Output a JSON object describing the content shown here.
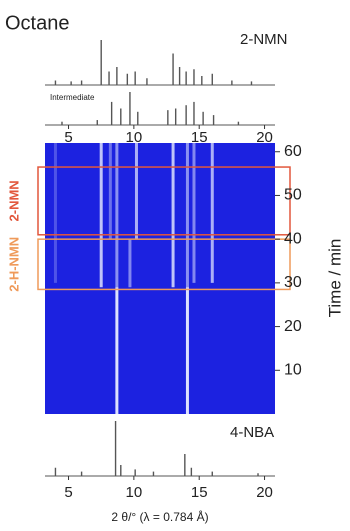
{
  "chart_data": {
    "type": "xrd-heatmap",
    "title": "Octane",
    "xlabel": "2 θ/° (λ = 0.784 Å)",
    "ylabel": "Time / min",
    "xlim": [
      3.2,
      20.8
    ],
    "xticks": [
      5,
      10,
      15,
      20
    ],
    "ylim": [
      0,
      62
    ],
    "yticks": [
      10,
      20,
      30,
      40,
      50,
      60
    ],
    "heatmap_color": "#1c22e0",
    "streak_color": "#e8ecff",
    "streaks": [
      {
        "x": 8.7,
        "from": 0,
        "to": 29,
        "opacity": 0.95
      },
      {
        "x": 8.7,
        "from": 29,
        "to": 62,
        "opacity": 0.55
      },
      {
        "x": 14.1,
        "from": 0,
        "to": 29,
        "opacity": 0.95
      },
      {
        "x": 14.1,
        "from": 29,
        "to": 62,
        "opacity": 0.55
      },
      {
        "x": 7.5,
        "from": 29,
        "to": 62,
        "opacity": 0.8
      },
      {
        "x": 8.2,
        "from": 40,
        "to": 62,
        "opacity": 0.4
      },
      {
        "x": 9.7,
        "from": 29,
        "to": 40,
        "opacity": 0.5
      },
      {
        "x": 10.2,
        "from": 40,
        "to": 62,
        "opacity": 0.7
      },
      {
        "x": 13.0,
        "from": 29,
        "to": 62,
        "opacity": 0.8
      },
      {
        "x": 14.6,
        "from": 30,
        "to": 62,
        "opacity": 0.5
      },
      {
        "x": 16.0,
        "from": 30,
        "to": 62,
        "opacity": 0.7
      },
      {
        "x": 4.0,
        "from": 30,
        "to": 62,
        "opacity": 0.25
      }
    ],
    "regions": [
      {
        "name": "2-NMN",
        "ylim": [
          41,
          56.5
        ],
        "color": "#e2573c"
      },
      {
        "name": "2-H-NMN",
        "ylim": [
          28.5,
          40
        ],
        "color": "#ef9a5a"
      }
    ],
    "patterns": [
      {
        "name": "2-NMN",
        "color": "#555555",
        "x": [
          4.0,
          5.2,
          6.0,
          7.5,
          8.1,
          8.7,
          9.5,
          10.1,
          11.0,
          13.0,
          13.5,
          14.0,
          14.6,
          15.2,
          16.0,
          17.5,
          19.0
        ],
        "values": [
          10,
          8,
          10,
          100,
          30,
          40,
          25,
          30,
          15,
          70,
          40,
          30,
          35,
          20,
          25,
          10,
          8
        ]
      },
      {
        "name": "Intermediate",
        "color": "#555555",
        "x": [
          4.5,
          7.2,
          8.3,
          9.0,
          9.7,
          10.3,
          12.6,
          13.2,
          14.0,
          14.6,
          15.3,
          16.1,
          18.0
        ],
        "values": [
          10,
          15,
          70,
          50,
          100,
          40,
          45,
          50,
          60,
          70,
          40,
          30,
          10
        ]
      },
      {
        "name": "4-NBA",
        "color": "#555555",
        "x": [
          4.0,
          6.0,
          8.6,
          9.0,
          10.1,
          11.5,
          13.9,
          14.4,
          16.0,
          19.5
        ],
        "values": [
          15,
          8,
          100,
          20,
          12,
          8,
          40,
          15,
          8,
          5
        ]
      }
    ]
  }
}
